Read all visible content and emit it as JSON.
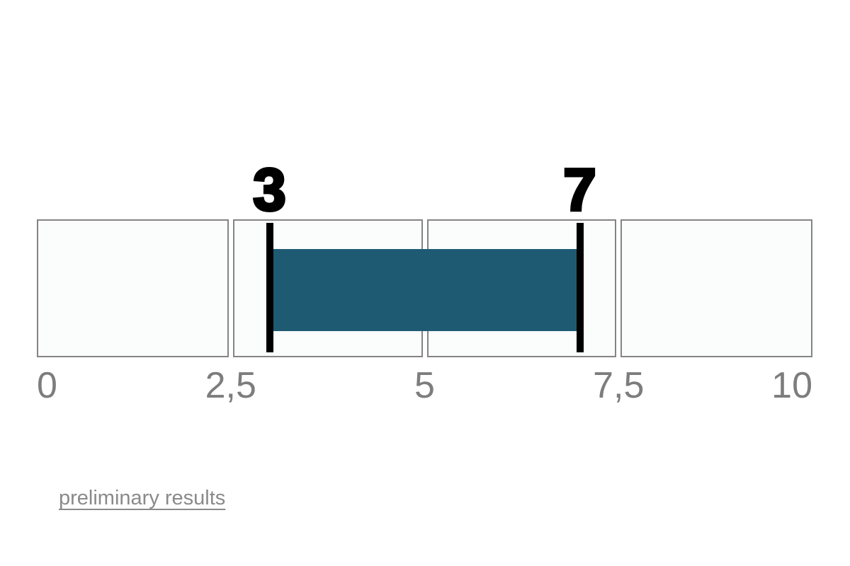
{
  "chart_data": {
    "type": "bar",
    "subtype": "range",
    "orientation": "horizontal",
    "title": "",
    "xlabel": "",
    "ylabel": "",
    "xlim": [
      0,
      10
    ],
    "grid": "off",
    "legend": "none",
    "ticks": [
      {
        "value": 0,
        "label": "0"
      },
      {
        "value": 2.5,
        "label": "2,5"
      },
      {
        "value": 5,
        "label": "5"
      },
      {
        "value": 7.5,
        "label": "7,5"
      },
      {
        "value": 10,
        "label": "10"
      }
    ],
    "range": {
      "start": 3,
      "end": 7,
      "start_label": "3",
      "end_label": "7"
    },
    "colors": {
      "bar": "#1E5B73",
      "marker": "#000000",
      "marker_label": "#000000",
      "segment_fill": "#FAFDFB",
      "segment_border": "#848484",
      "tick_label": "#7D7D7D"
    }
  },
  "footer": {
    "link_label": "preliminary results",
    "link_color": "#8A8A8A"
  }
}
